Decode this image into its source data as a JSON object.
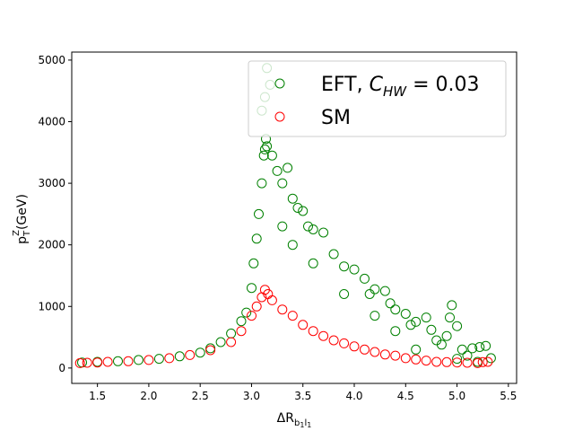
{
  "chart_data": {
    "type": "scatter",
    "xlabel": "ΔR_{b1 l1}",
    "ylabel": "p_T^Z(GeV)",
    "xlim": [
      1.25,
      5.58
    ],
    "ylim": [
      -250,
      5130
    ],
    "x_ticks": [
      "1.5",
      "2.0",
      "2.5",
      "3.0",
      "3.5",
      "4.0",
      "4.5",
      "5.0",
      "5.5"
    ],
    "y_ticks": [
      "0",
      "1000",
      "2000",
      "3000",
      "4000",
      "5000"
    ],
    "grid": false,
    "legend_position": "top-right",
    "series": [
      {
        "name": "EFT, C_HW = 0.03",
        "color": "#008000",
        "marker": "hollow-circle",
        "points": [
          [
            1.35,
            90
          ],
          [
            1.5,
            100
          ],
          [
            1.7,
            110
          ],
          [
            1.9,
            130
          ],
          [
            2.1,
            150
          ],
          [
            2.3,
            190
          ],
          [
            2.5,
            250
          ],
          [
            2.6,
            320
          ],
          [
            2.7,
            420
          ],
          [
            2.8,
            560
          ],
          [
            2.9,
            760
          ],
          [
            2.95,
            900
          ],
          [
            3.0,
            1300
          ],
          [
            3.02,
            1700
          ],
          [
            3.05,
            2100
          ],
          [
            3.07,
            2500
          ],
          [
            3.1,
            3000
          ],
          [
            3.12,
            3450
          ],
          [
            3.13,
            3550
          ],
          [
            3.14,
            3720
          ],
          [
            3.15,
            3600
          ],
          [
            3.1,
            4180
          ],
          [
            3.13,
            4400
          ],
          [
            3.15,
            4870
          ],
          [
            3.18,
            4600
          ],
          [
            3.2,
            3450
          ],
          [
            3.25,
            3200
          ],
          [
            3.3,
            3000
          ],
          [
            3.35,
            3250
          ],
          [
            3.4,
            2750
          ],
          [
            3.45,
            2600
          ],
          [
            3.5,
            2550
          ],
          [
            3.55,
            2300
          ],
          [
            3.6,
            2250
          ],
          [
            3.7,
            2200
          ],
          [
            3.8,
            1850
          ],
          [
            3.9,
            1650
          ],
          [
            4.0,
            1600
          ],
          [
            4.1,
            1450
          ],
          [
            4.15,
            1200
          ],
          [
            4.2,
            1280
          ],
          [
            4.3,
            1250
          ],
          [
            4.35,
            1050
          ],
          [
            4.4,
            950
          ],
          [
            4.5,
            880
          ],
          [
            4.55,
            700
          ],
          [
            4.6,
            750
          ],
          [
            4.7,
            820
          ],
          [
            4.75,
            620
          ],
          [
            4.8,
            450
          ],
          [
            4.85,
            380
          ],
          [
            4.9,
            520
          ],
          [
            4.95,
            1020
          ],
          [
            4.93,
            820
          ],
          [
            5.0,
            680
          ],
          [
            5.05,
            300
          ],
          [
            5.1,
            200
          ],
          [
            5.15,
            320
          ],
          [
            5.22,
            340
          ],
          [
            5.28,
            360
          ],
          [
            5.33,
            160
          ],
          [
            5.2,
            100
          ],
          [
            5.0,
            150
          ],
          [
            4.6,
            300
          ],
          [
            4.4,
            600
          ],
          [
            4.2,
            850
          ],
          [
            3.9,
            1200
          ],
          [
            3.6,
            1700
          ],
          [
            3.4,
            2000
          ],
          [
            3.3,
            2300
          ]
        ]
      },
      {
        "name": "SM",
        "color": "#ff0000",
        "marker": "hollow-circle",
        "points": [
          [
            1.33,
            80
          ],
          [
            1.4,
            85
          ],
          [
            1.5,
            90
          ],
          [
            1.6,
            100
          ],
          [
            1.8,
            110
          ],
          [
            2.0,
            130
          ],
          [
            2.2,
            160
          ],
          [
            2.4,
            210
          ],
          [
            2.6,
            290
          ],
          [
            2.8,
            420
          ],
          [
            2.9,
            600
          ],
          [
            3.0,
            850
          ],
          [
            3.05,
            1000
          ],
          [
            3.1,
            1150
          ],
          [
            3.13,
            1270
          ],
          [
            3.16,
            1200
          ],
          [
            3.2,
            1100
          ],
          [
            3.3,
            950
          ],
          [
            3.4,
            850
          ],
          [
            3.5,
            700
          ],
          [
            3.6,
            600
          ],
          [
            3.7,
            520
          ],
          [
            3.8,
            450
          ],
          [
            3.9,
            400
          ],
          [
            4.0,
            350
          ],
          [
            4.1,
            300
          ],
          [
            4.2,
            260
          ],
          [
            4.3,
            220
          ],
          [
            4.4,
            200
          ],
          [
            4.5,
            160
          ],
          [
            4.6,
            140
          ],
          [
            4.7,
            120
          ],
          [
            4.8,
            100
          ],
          [
            4.9,
            95
          ],
          [
            5.0,
            90
          ],
          [
            5.1,
            85
          ],
          [
            5.2,
            80
          ],
          [
            5.25,
            95
          ],
          [
            5.3,
            100
          ]
        ]
      }
    ]
  }
}
